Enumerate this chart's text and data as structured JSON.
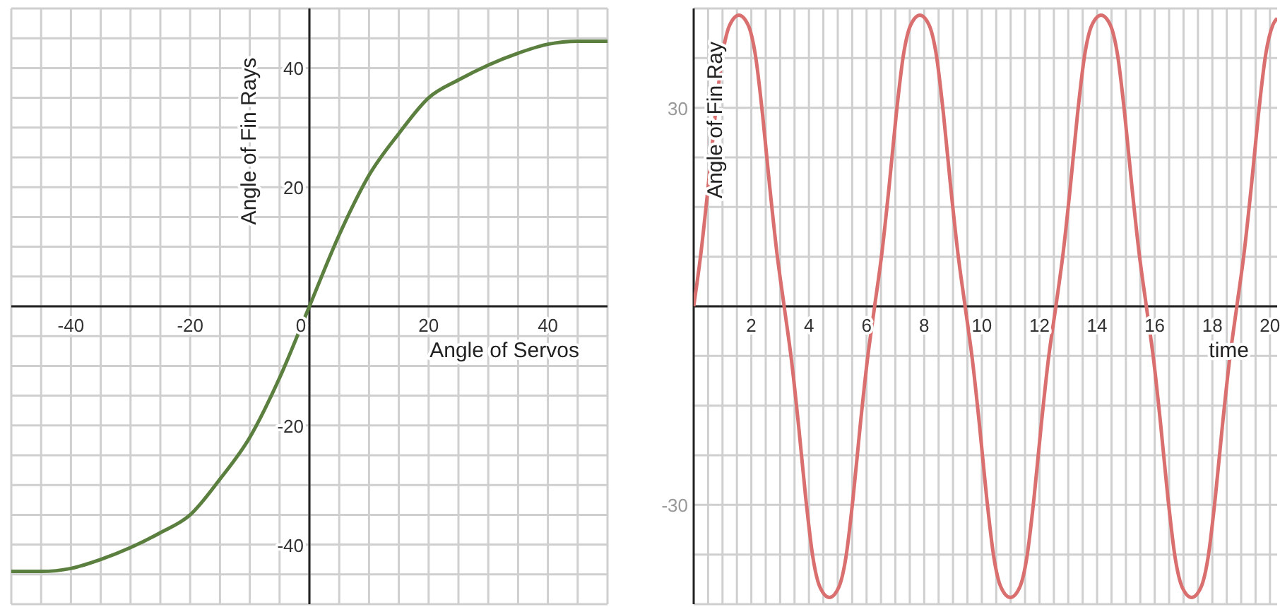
{
  "chart_data": [
    {
      "type": "line",
      "xlabel": "Angle of Servos",
      "ylabel": "Angle of Fin Rays",
      "xlim": [
        -50,
        50
      ],
      "ylim": [
        -50,
        50
      ],
      "grid": true,
      "xticks": [
        {
          "value": -50,
          "label": null
        },
        {
          "value": -45,
          "label": null
        },
        -40,
        {
          "value": -35,
          "label": null
        },
        {
          "value": -30,
          "label": null
        },
        {
          "value": -25,
          "label": null
        },
        -20,
        {
          "value": -15,
          "label": null
        },
        {
          "value": -10,
          "label": null
        },
        {
          "value": -5,
          "label": null
        },
        0,
        {
          "value": 5,
          "label": null
        },
        {
          "value": 10,
          "label": null
        },
        {
          "value": 15,
          "label": null
        },
        20,
        {
          "value": 25,
          "label": null
        },
        {
          "value": 30,
          "label": null
        },
        {
          "value": 35,
          "label": null
        },
        40,
        {
          "value": 45,
          "label": null
        },
        {
          "value": 50,
          "label": null
        }
      ],
      "yticks": [
        {
          "value": -50,
          "label": null
        },
        {
          "value": -45,
          "label": null
        },
        -40,
        {
          "value": -35,
          "label": null
        },
        {
          "value": -30,
          "label": null
        },
        {
          "value": -25,
          "label": null
        },
        -20,
        {
          "value": -15,
          "label": null
        },
        {
          "value": -10,
          "label": null
        },
        {
          "value": -5,
          "label": null
        },
        {
          "value": 0,
          "label": null
        },
        {
          "value": 5,
          "label": null
        },
        {
          "value": 10,
          "label": null
        },
        {
          "value": 15,
          "label": null
        },
        20,
        {
          "value": 25,
          "label": null
        },
        {
          "value": 30,
          "label": null
        },
        {
          "value": 35,
          "label": null
        },
        40,
        {
          "value": 45,
          "label": null
        },
        {
          "value": 50,
          "label": null
        }
      ],
      "series": [
        {
          "color": "#5b7f3f",
          "x": [
            -50,
            -45,
            -40,
            -35,
            -30,
            -25,
            -20,
            -15,
            -10,
            -5,
            0,
            5,
            10,
            15,
            20,
            25,
            30,
            35,
            40,
            45,
            50
          ],
          "values": [
            -44.5,
            -44.5,
            -44,
            -42.5,
            -40.5,
            -38,
            -35,
            -29,
            -22,
            -12,
            0,
            12,
            22,
            29,
            35,
            38,
            40.5,
            42.5,
            44,
            44.5,
            44.5
          ]
        }
      ]
    },
    {
      "type": "line",
      "xlabel": "time",
      "ylabel": "Angle of Fin Ray",
      "xlim": [
        0,
        20.25
      ],
      "ylim": [
        -45,
        45
      ],
      "grid": true,
      "xticks": [
        {
          "value": 0.5,
          "label": null
        },
        {
          "value": 1,
          "label": null
        },
        {
          "value": 1.5,
          "label": null
        },
        2,
        {
          "value": 2.5,
          "label": null
        },
        {
          "value": 3,
          "label": null
        },
        {
          "value": 3.5,
          "label": null
        },
        4,
        {
          "value": 4.5,
          "label": null
        },
        {
          "value": 5,
          "label": null
        },
        {
          "value": 5.5,
          "label": null
        },
        6,
        {
          "value": 6.5,
          "label": null
        },
        {
          "value": 7,
          "label": null
        },
        {
          "value": 7.5,
          "label": null
        },
        8,
        {
          "value": 8.5,
          "label": null
        },
        {
          "value": 9,
          "label": null
        },
        {
          "value": 9.5,
          "label": null
        },
        10,
        {
          "value": 10.5,
          "label": null
        },
        {
          "value": 11,
          "label": null
        },
        {
          "value": 11.5,
          "label": null
        },
        12,
        {
          "value": 12.5,
          "label": null
        },
        {
          "value": 13,
          "label": null
        },
        {
          "value": 13.5,
          "label": null
        },
        14,
        {
          "value": 14.5,
          "label": null
        },
        {
          "value": 15,
          "label": null
        },
        {
          "value": 15.5,
          "label": null
        },
        16,
        {
          "value": 16.5,
          "label": null
        },
        {
          "value": 17,
          "label": null
        },
        {
          "value": 17.5,
          "label": null
        },
        18,
        {
          "value": 18.5,
          "label": null
        },
        {
          "value": 19,
          "label": null
        },
        {
          "value": 19.5,
          "label": null
        },
        20
      ],
      "yticks": [
        {
          "value": -45,
          "label": null
        },
        {
          "value": -37.5,
          "label": null
        },
        -30,
        {
          "value": -22.5,
          "label": null
        },
        {
          "value": -15,
          "label": null
        },
        {
          "value": -7.5,
          "label": null
        },
        {
          "value": 0,
          "label": null
        },
        {
          "value": 7.5,
          "label": null
        },
        {
          "value": 15,
          "label": null
        },
        {
          "value": 22.5,
          "label": null
        },
        30,
        {
          "value": 37.5,
          "label": null
        },
        {
          "value": 45,
          "label": null
        }
      ],
      "series": [
        {
          "color": "#d9706f",
          "x": [
            0,
            0.25,
            0.5,
            0.75,
            1,
            1.25,
            1.57,
            1.89,
            2.14,
            2.39,
            2.64,
            2.89,
            3.14,
            3.39,
            3.64,
            3.89,
            4.14,
            4.39,
            4.71,
            5.03,
            5.28,
            5.53,
            5.78,
            6.03,
            6.28,
            6.53,
            6.78,
            7.03,
            7.28,
            7.53,
            7.85,
            8.17,
            8.42,
            8.67,
            8.92,
            9.17,
            9.42,
            9.67,
            9.92,
            10.17,
            10.42,
            10.67,
            10.99,
            11.31,
            11.56,
            11.81,
            12.06,
            12.31,
            12.57,
            12.82,
            13.07,
            13.32,
            13.57,
            13.82,
            14.14,
            14.46,
            14.71,
            14.96,
            15.21,
            15.46,
            15.71,
            15.96,
            16.21,
            16.46,
            16.71,
            16.96,
            17.28,
            17.6,
            17.85,
            18.1,
            18.35,
            18.6,
            18.85,
            19.1,
            19.35,
            19.6,
            19.85,
            20.1,
            20.25
          ],
          "values": [
            0,
            8,
            18,
            29,
            38,
            42.5,
            44,
            42.5,
            38,
            29,
            18,
            8,
            0,
            -8,
            -18,
            -29,
            -38,
            -42.5,
            -44,
            -42.5,
            -38,
            -29,
            -18,
            -8,
            0,
            8,
            18,
            29,
            38,
            42.5,
            44,
            42.5,
            38,
            29,
            18,
            8,
            0,
            -8,
            -18,
            -29,
            -38,
            -42.5,
            -44,
            -42.5,
            -38,
            -29,
            -18,
            -8,
            0,
            8,
            18,
            29,
            38,
            42.5,
            44,
            42.5,
            38,
            29,
            18,
            8,
            0,
            -8,
            -18,
            -29,
            -38,
            -42.5,
            -44,
            -42.5,
            -38,
            -29,
            -18,
            -8,
            0,
            8,
            18,
            29,
            38,
            42.5,
            43.5
          ]
        }
      ]
    }
  ]
}
